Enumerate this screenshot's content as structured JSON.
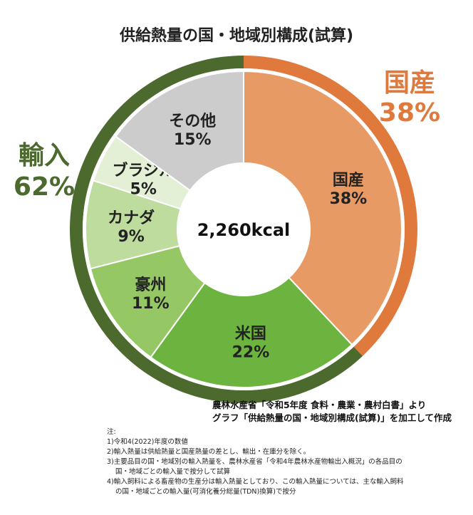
{
  "title": "供給熱量の国・地域別構成(試算)",
  "chart_data": {
    "type": "pie",
    "center_label": "2,260kcal",
    "slices": [
      {
        "name": "国産",
        "value": 38,
        "label": "38%",
        "color": "#E89A65"
      },
      {
        "name": "米国",
        "value": 22,
        "label": "22%",
        "color": "#6CB33F"
      },
      {
        "name": "豪州",
        "value": 11,
        "label": "11%",
        "color": "#95C765"
      },
      {
        "name": "カナダ",
        "value": 9,
        "label": "9%",
        "color": "#BDDC9E"
      },
      {
        "name": "ブラジル",
        "value": 5,
        "label": "5%",
        "color": "#E3F0D6"
      },
      {
        "name": "その他",
        "value": 15,
        "label": "15%",
        "color": "#CCCCCC"
      }
    ],
    "outer_groups": [
      {
        "name": "国産",
        "value": 38,
        "label": "38%",
        "color": "#E07A3C"
      },
      {
        "name": "輸入",
        "value": 62,
        "label": "62%",
        "color": "#4D6A2E"
      }
    ]
  },
  "source": {
    "line1": "農林水産省「令和5年度 食料・農業・農村白書」より",
    "line2": "グラフ「供給熱量の国・地域別構成(試算)」を加工して作成"
  },
  "notes": {
    "header": "注:",
    "n1": "1)令和4(2022)年度の数値",
    "n2": "2)輸入熱量は供給熱量と国産熱量の差とし、輸出・在庫分を除く。",
    "n3a": "3)主要品目の国・地域別の輸入熱量を、農林水産省「令和4年農林水産物輸出入概況」の各品目の",
    "n3b": "国・地域ごとの輸入量で按分して試算",
    "n4a": "4)輸入飼料による畜産物の生産分は輸入熱量としており、この輸入熱量については、主な輸入飼料",
    "n4b": "の国・地域ごとの輸入量(可消化養分総量(TDN)換算)で按分"
  }
}
